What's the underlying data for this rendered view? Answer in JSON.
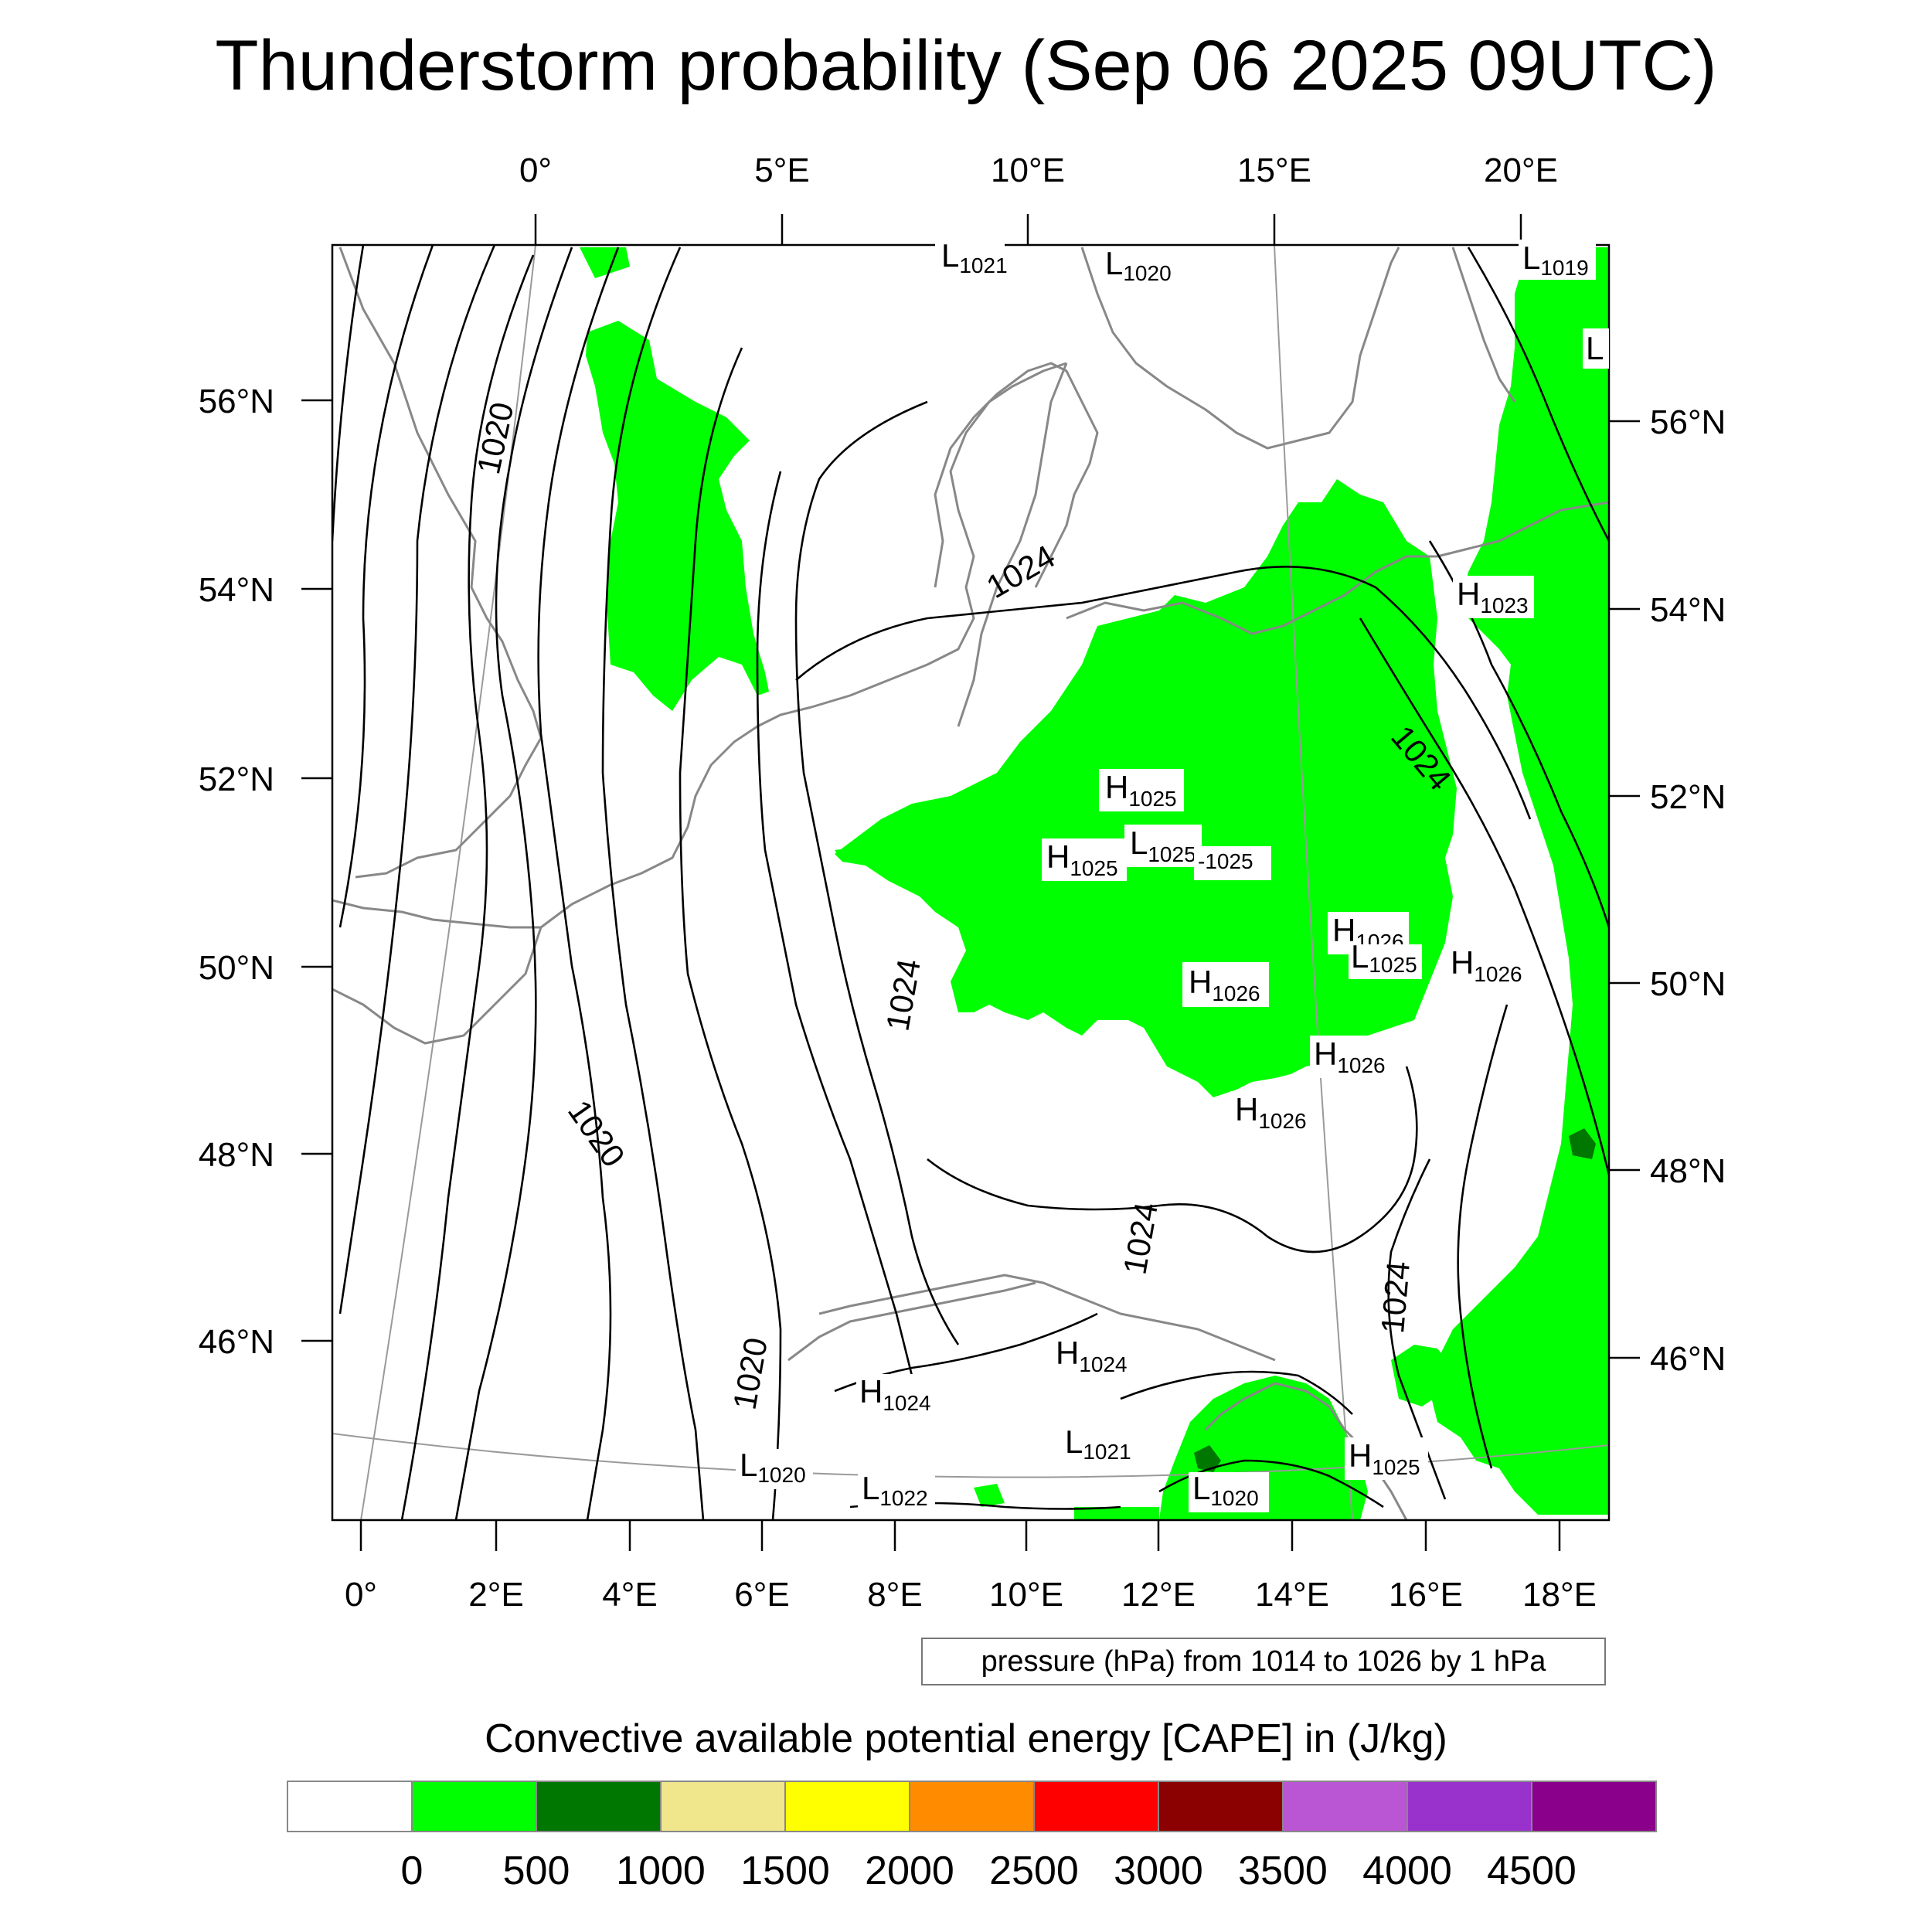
{
  "title": "Thunderstorm probability (Sep 06 2025 09UTC)",
  "map": {
    "top_lon_labels": [
      "0°",
      "5°E",
      "10°E",
      "15°E",
      "20°E"
    ],
    "bottom_lon_labels": [
      "0°",
      "2°E",
      "4°E",
      "6°E",
      "8°E",
      "10°E",
      "12°E",
      "14°E",
      "16°E",
      "18°E"
    ],
    "left_lat_labels": [
      "56°N",
      "54°N",
      "52°N",
      "50°N",
      "48°N",
      "46°N"
    ],
    "right_lat_labels": [
      "56°N",
      "54°N",
      "52°N",
      "50°N",
      "48°N",
      "46°N"
    ],
    "contour_labels": [
      "1020",
      "1024",
      "1024",
      "1020",
      "1024",
      "1024",
      "1024",
      "1020"
    ],
    "pressure_centers": [
      {
        "type": "L",
        "value": "1021"
      },
      {
        "type": "L",
        "value": "1020"
      },
      {
        "type": "L",
        "value": "1019"
      },
      {
        "type": "L",
        "value": ""
      },
      {
        "type": "H",
        "value": "1023"
      },
      {
        "type": "H",
        "value": "1025"
      },
      {
        "type": "H",
        "value": "1025"
      },
      {
        "type": "L",
        "value": "1025"
      },
      {
        "type": "",
        "value": "-1025"
      },
      {
        "type": "H",
        "value": "1026"
      },
      {
        "type": "L",
        "value": "1025"
      },
      {
        "type": "H",
        "value": "1026"
      },
      {
        "type": "H",
        "value": "1026"
      },
      {
        "type": "H",
        "value": "1026"
      },
      {
        "type": "H",
        "value": "1026"
      },
      {
        "type": "H",
        "value": "1024"
      },
      {
        "type": "H",
        "value": "1024"
      },
      {
        "type": "L",
        "value": "1021"
      },
      {
        "type": "H",
        "value": "1025"
      },
      {
        "type": "L",
        "value": "1020"
      },
      {
        "type": "L",
        "value": "1022"
      },
      {
        "type": "L",
        "value": "1020"
      }
    ],
    "colors": {
      "cape_0_500": "#00ff00",
      "cape_500_1000": "#007700",
      "coastline": "#888888",
      "isobar": "#000000"
    }
  },
  "pressure_note": "pressure (hPa) from 1014 to 1026 by 1 hPa",
  "legend": {
    "title": "Convective available potential energy [CAPE] in (J/kg)",
    "colors": [
      "#ffffff",
      "#00ff00",
      "#007700",
      "#f0e68c",
      "#ffff00",
      "#ff8c00",
      "#ff0000",
      "#8b0000",
      "#ba55d3",
      "#9932cc",
      "#8b008b"
    ],
    "ticks": [
      "0",
      "500",
      "1000",
      "1500",
      "2000",
      "2500",
      "3000",
      "3500",
      "4000",
      "4500"
    ]
  }
}
